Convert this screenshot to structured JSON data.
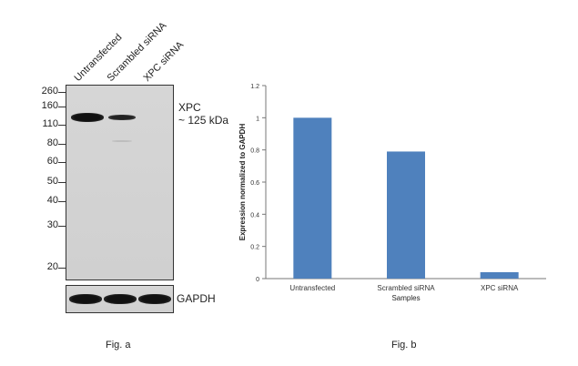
{
  "fig_a": {
    "lanes": [
      "Untransfected",
      "Scrambled siRNA",
      "XPC siRNA"
    ],
    "mw_markers": [
      "260",
      "160",
      "110",
      "80",
      "60",
      "50",
      "40",
      "30",
      "20"
    ],
    "target_label": "XPC",
    "target_size": "~ 125 kDa",
    "loading_control": "GAPDH",
    "caption": "Fig. a"
  },
  "fig_b": {
    "caption": "Fig. b"
  },
  "chart_data": {
    "type": "bar",
    "categories": [
      "Untransfected",
      "Scrambled siRNA",
      "XPC siRNA"
    ],
    "values": [
      1.0,
      0.79,
      0.04
    ],
    "xlabel": "Samples",
    "ylabel": "Expression normalized to GAPDH",
    "ylim": [
      0,
      1.2
    ],
    "yticks": [
      "0",
      "0.2",
      "0.4",
      "0.6",
      "0.8",
      "1",
      "1.2"
    ],
    "bar_color": "#4f81bd",
    "grid": false
  }
}
